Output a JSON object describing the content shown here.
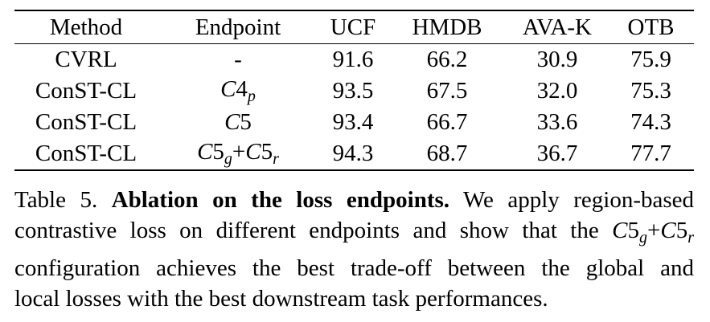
{
  "table": {
    "headers": [
      "Method",
      "Endpoint",
      "UCF",
      "HMDB",
      "AVA-K",
      "OTB"
    ],
    "rows": [
      {
        "method": "CVRL",
        "endpoint_plain": "-",
        "ucf": "91.6",
        "hmdb": "66.2",
        "avak": "30.9",
        "otb": "75.9"
      },
      {
        "method": "ConST-CL",
        "endpoint_base": "C",
        "endpoint_num": "4",
        "endpoint_sub": "p",
        "ucf": "93.5",
        "hmdb": "67.5",
        "avak": "32.0",
        "otb": "75.3"
      },
      {
        "method": "ConST-CL",
        "endpoint_base": "C",
        "endpoint_num": "5",
        "ucf": "93.4",
        "hmdb": "66.7",
        "avak": "33.6",
        "otb": "74.3"
      },
      {
        "method": "ConST-CL",
        "endpoint_base1": "C",
        "endpoint_num1": "5",
        "endpoint_sub1": "g",
        "endpoint_plus": "+",
        "endpoint_base2": "C",
        "endpoint_num2": "5",
        "endpoint_sub2": "r",
        "ucf": "94.3",
        "hmdb": "68.7",
        "avak": "36.7",
        "otb": "77.7"
      }
    ]
  },
  "caption": {
    "label": "Table 5.",
    "bold_title": "Ablation on the loss endpoints.",
    "line1_rest": "We apply region-based",
    "line2_pre": "contrastive loss on different endpoints and show that the",
    "math_base1": "C",
    "math_num1": "5",
    "math_sub1": "g",
    "math_plus": "+",
    "math_base2": "C",
    "math_num2": "5",
    "math_sub2": "r",
    "line3": "configuration achieves the best trade-off between the global and",
    "line4": "local losses with the best downstream task performances."
  }
}
